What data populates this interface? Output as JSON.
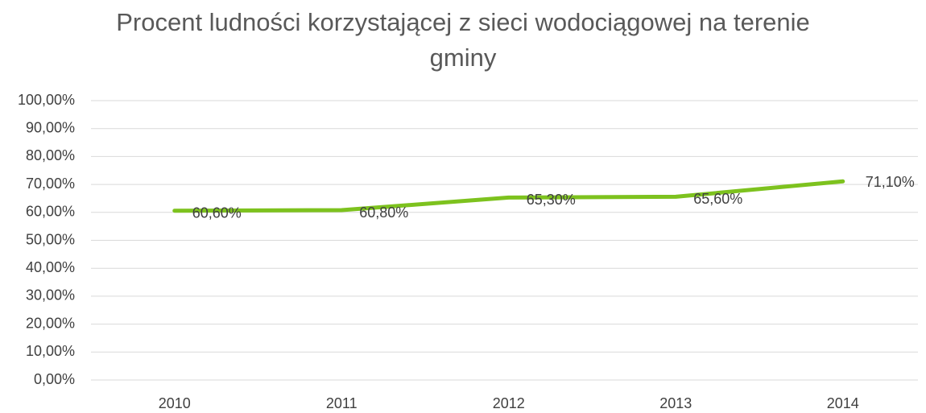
{
  "chart_data": {
    "type": "line",
    "title": "Procent ludności korzystającej z sieci wodociągowej na terenie gminy",
    "categories": [
      "2010",
      "2011",
      "2012",
      "2013",
      "2014"
    ],
    "series": [
      {
        "name": null,
        "color": "#7dc21e",
        "values": [
          60.6,
          60.8,
          65.3,
          65.6,
          71.1
        ],
        "value_labels": [
          "60,60%",
          "60,80%",
          "65,30%",
          "65,60%",
          "71,10%"
        ]
      }
    ],
    "ylim": [
      0,
      100
    ],
    "yticks": [
      {
        "value": 0,
        "label": "0,00%"
      },
      {
        "value": 10,
        "label": "10,00%"
      },
      {
        "value": 20,
        "label": "20,00%"
      },
      {
        "value": 30,
        "label": "30,00%"
      },
      {
        "value": 40,
        "label": "40,00%"
      },
      {
        "value": 50,
        "label": "50,00%"
      },
      {
        "value": 60,
        "label": "60,00%"
      },
      {
        "value": 70,
        "label": "70,00%"
      },
      {
        "value": 80,
        "label": "80,00%"
      },
      {
        "value": 90,
        "label": "90,00%"
      },
      {
        "value": 100,
        "label": "100,00%"
      }
    ],
    "grid": true
  }
}
